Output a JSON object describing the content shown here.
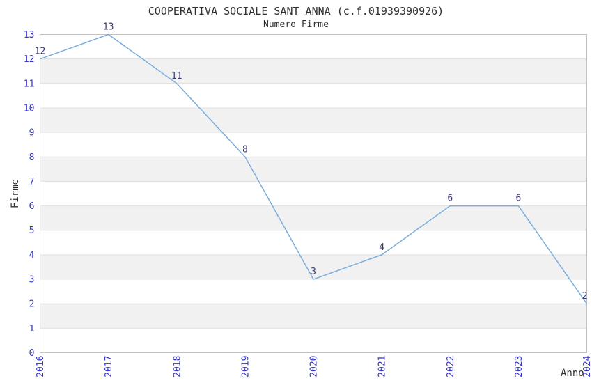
{
  "chart_data": {
    "type": "line",
    "title": "COOPERATIVA SOCIALE SANT ANNA (c.f.01939390926)",
    "subtitle": "Numero Firme",
    "xlabel": "Anno",
    "ylabel": "Firme",
    "x": [
      2016,
      2017,
      2018,
      2019,
      2020,
      2021,
      2022,
      2023,
      2024
    ],
    "values": [
      12,
      13,
      11,
      8,
      3,
      4,
      6,
      6,
      2
    ],
    "ylim": [
      0,
      13
    ],
    "yticks": [
      0,
      1,
      2,
      3,
      4,
      5,
      6,
      7,
      8,
      9,
      10,
      11,
      12,
      13
    ],
    "grid": "horizontal-bands-and-lines",
    "legend": "none",
    "point_labels_shown": true,
    "colors": {
      "line": "#7aaddc",
      "tick_label": "#3333cc",
      "point_label": "#383875",
      "band": "#f1f1f1",
      "gridline": "#e0e0e0",
      "border": "#c0c0c0",
      "text": "#303030",
      "background": "#ffffff"
    }
  }
}
